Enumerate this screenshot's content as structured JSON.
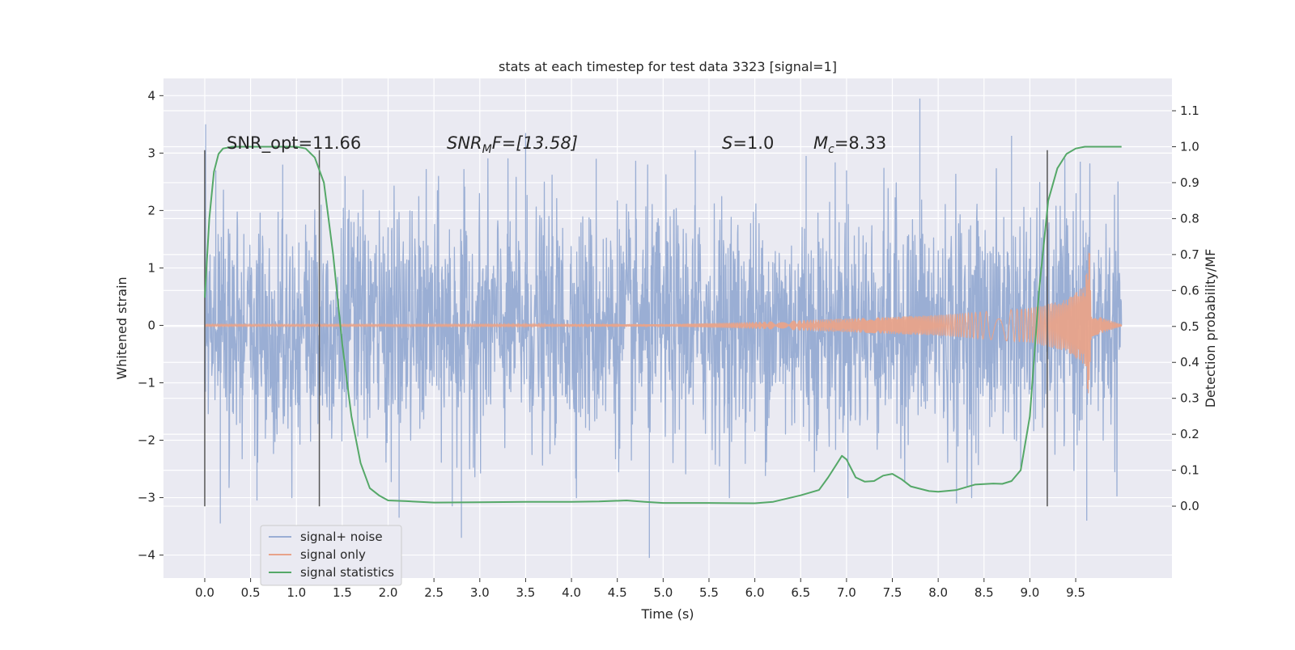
{
  "chart_data": {
    "type": "line",
    "title": "stats at each timestep for test data 3323 [signal=1]",
    "xlabel": "Time (s)",
    "ylabel": "Whitened strain",
    "y2label": "Detection probability/MF",
    "xlim": [
      -0.45,
      10.55
    ],
    "ylim": [
      -4.4,
      4.3
    ],
    "y2lim": [
      -0.2,
      1.19
    ],
    "xticks": [
      "0.0",
      "0.5",
      "1.0",
      "1.5",
      "2.0",
      "2.5",
      "3.0",
      "3.5",
      "4.0",
      "4.5",
      "5.0",
      "5.5",
      "6.0",
      "6.5",
      "7.0",
      "7.5",
      "8.0",
      "8.5",
      "9.0",
      "9.5"
    ],
    "yticks": [
      "4",
      "3",
      "2",
      "1",
      "0",
      "−1",
      "−2",
      "−3",
      "−4"
    ],
    "y2ticks": [
      "1.1",
      "1.0",
      "0.9",
      "0.8",
      "0.7",
      "0.6",
      "0.5",
      "0.4",
      "0.3",
      "0.2",
      "0.1",
      "0.0"
    ],
    "grid": true,
    "legend_position": "lower-left",
    "annotations": {
      "snr_opt": "SNR_opt=11.66",
      "snr_mf_main": "SNR",
      "snr_mf_sub": "M",
      "snr_mf_rest": "F=[13.58]",
      "s_main": "S",
      "s_rest": "=1.0",
      "mc_main": "M",
      "mc_sub": "c",
      "mc_rest": "=8.33"
    },
    "vlines": [
      0.0,
      1.25,
      9.19
    ],
    "vline_range": [
      -3.15,
      3.05
    ],
    "series": [
      {
        "name": "signal+ noise",
        "color": "#9aaed4",
        "kind": "noise",
        "x_range": [
          0.0,
          10.0
        ],
        "envelope_sigma": 1.0,
        "spikes": [
          {
            "x": 0.01,
            "y": 3.5
          },
          {
            "x": 0.12,
            "y": 2.7
          },
          {
            "x": 0.17,
            "y": -3.45
          },
          {
            "x": 0.57,
            "y": -3.05
          },
          {
            "x": 0.85,
            "y": 2.8
          },
          {
            "x": 1.27,
            "y": 2.1
          },
          {
            "x": 1.53,
            "y": 2.6
          },
          {
            "x": 2.12,
            "y": -3.35
          },
          {
            "x": 2.7,
            "y": -3.15
          },
          {
            "x": 2.8,
            "y": -3.7
          },
          {
            "x": 3.5,
            "y": 3.35
          },
          {
            "x": 4.27,
            "y": 2.9
          },
          {
            "x": 4.85,
            "y": -4.05
          },
          {
            "x": 5.35,
            "y": 3.05
          },
          {
            "x": 6.56,
            "y": 2.95
          },
          {
            "x": 7.0,
            "y": 2.7
          },
          {
            "x": 7.8,
            "y": 3.95
          },
          {
            "x": 8.2,
            "y": -3.1
          },
          {
            "x": 8.8,
            "y": 3.3
          },
          {
            "x": 9.62,
            "y": -3.4
          },
          {
            "x": 9.55,
            "y": 2.85
          }
        ]
      },
      {
        "name": "signal only",
        "color": "#e8a38a",
        "kind": "chirp",
        "amplitude_points": [
          [
            0.0,
            0.02
          ],
          [
            5.0,
            0.02
          ],
          [
            6.0,
            0.06
          ],
          [
            7.0,
            0.12
          ],
          [
            8.0,
            0.18
          ],
          [
            9.0,
            0.3
          ],
          [
            9.4,
            0.45
          ],
          [
            9.6,
            0.7
          ],
          [
            9.65,
            1.45
          ],
          [
            9.67,
            0.2
          ],
          [
            10.0,
            0.02
          ]
        ]
      },
      {
        "name": "signal statistics",
        "color": "#55a868",
        "axis": "right",
        "kind": "curve",
        "x": [
          0.0,
          0.05,
          0.1,
          0.15,
          0.2,
          0.3,
          0.5,
          0.8,
          1.0,
          1.1,
          1.2,
          1.3,
          1.4,
          1.5,
          1.6,
          1.7,
          1.8,
          1.9,
          2.0,
          2.2,
          2.5,
          3.0,
          3.5,
          4.0,
          4.3,
          4.6,
          4.8,
          5.0,
          5.5,
          6.0,
          6.2,
          6.5,
          6.7,
          6.8,
          6.9,
          6.95,
          7.0,
          7.1,
          7.2,
          7.3,
          7.4,
          7.5,
          7.6,
          7.7,
          7.9,
          8.0,
          8.2,
          8.4,
          8.6,
          8.7,
          8.8,
          8.9,
          9.0,
          9.1,
          9.2,
          9.3,
          9.4,
          9.5,
          9.6,
          9.7,
          10.0
        ],
        "y": [
          0.58,
          0.8,
          0.93,
          0.98,
          0.995,
          1.0,
          1.0,
          1.0,
          1.0,
          0.995,
          0.97,
          0.9,
          0.7,
          0.45,
          0.25,
          0.12,
          0.05,
          0.03,
          0.016,
          0.014,
          0.01,
          0.011,
          0.012,
          0.012,
          0.013,
          0.016,
          0.012,
          0.009,
          0.009,
          0.008,
          0.012,
          0.03,
          0.045,
          0.08,
          0.12,
          0.14,
          0.13,
          0.08,
          0.068,
          0.07,
          0.085,
          0.09,
          0.075,
          0.055,
          0.042,
          0.04,
          0.045,
          0.06,
          0.063,
          0.062,
          0.07,
          0.1,
          0.25,
          0.6,
          0.85,
          0.94,
          0.98,
          0.995,
          1.0,
          1.0,
          1.0
        ]
      }
    ]
  }
}
